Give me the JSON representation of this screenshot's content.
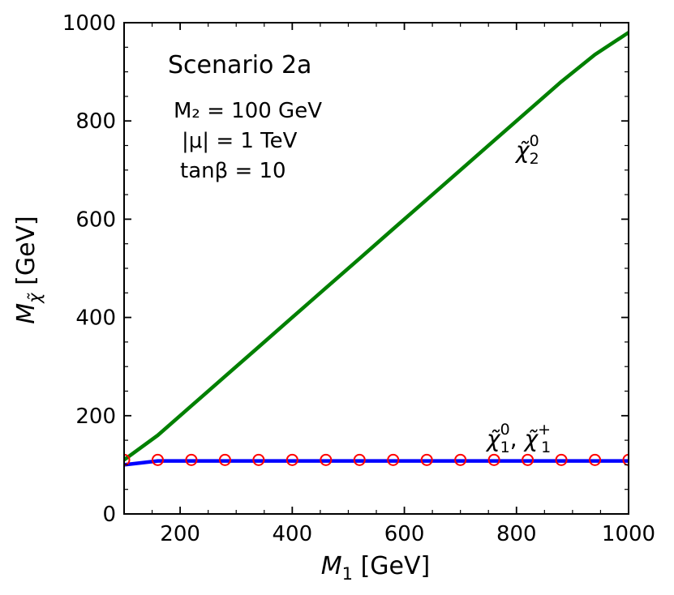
{
  "chart_data": {
    "type": "line",
    "xlabel": "M_1 [GeV]",
    "ylabel": "M_χ̃ [GeV]",
    "xlim": [
      100,
      1000
    ],
    "ylim": [
      0,
      1000
    ],
    "x_ticks": [
      200,
      400,
      600,
      800,
      1000
    ],
    "y_ticks": [
      0,
      200,
      400,
      600,
      800,
      1000
    ],
    "grid": false,
    "annotations": {
      "scenario": "Scenario 2a",
      "m2": "M₂ = 100 GeV",
      "mu": "|μ| = 1 TeV",
      "tanbeta": "tanβ = 10"
    },
    "series": [
      {
        "name": "neutralino-2",
        "label_base": "χ̃",
        "label_sup": "0",
        "label_sub": "2",
        "color": "#008000",
        "style": "line",
        "x": [
          100,
          160,
          220,
          280,
          340,
          400,
          460,
          520,
          580,
          640,
          700,
          760,
          820,
          880,
          940,
          1000
        ],
        "y": [
          110,
          160,
          220,
          280,
          340,
          400,
          460,
          520,
          580,
          640,
          700,
          760,
          820,
          880,
          935,
          980
        ]
      },
      {
        "name": "neutralino-1-chargino-1",
        "label_base": "χ̃",
        "label_sup": "0",
        "label_sub": "1",
        "label_base2": "χ̃",
        "label_sup2": "+",
        "label_sub2": "1",
        "color": "#0000ff",
        "style": "line",
        "x": [
          100,
          160,
          220,
          280,
          340,
          400,
          460,
          520,
          580,
          640,
          700,
          760,
          820,
          880,
          940,
          1000
        ],
        "y": [
          100,
          108,
          108,
          108,
          108,
          108,
          108,
          108,
          108,
          108,
          108,
          108,
          108,
          108,
          108,
          108
        ]
      },
      {
        "name": "markers",
        "color": "#ff0000",
        "style": "open-circle",
        "x": [
          100,
          160,
          220,
          280,
          340,
          400,
          460,
          520,
          580,
          640,
          700,
          760,
          820,
          880,
          940,
          1000
        ],
        "y": [
          110,
          110,
          110,
          110,
          110,
          110,
          110,
          110,
          110,
          110,
          110,
          110,
          110,
          110,
          110,
          110
        ]
      }
    ]
  }
}
